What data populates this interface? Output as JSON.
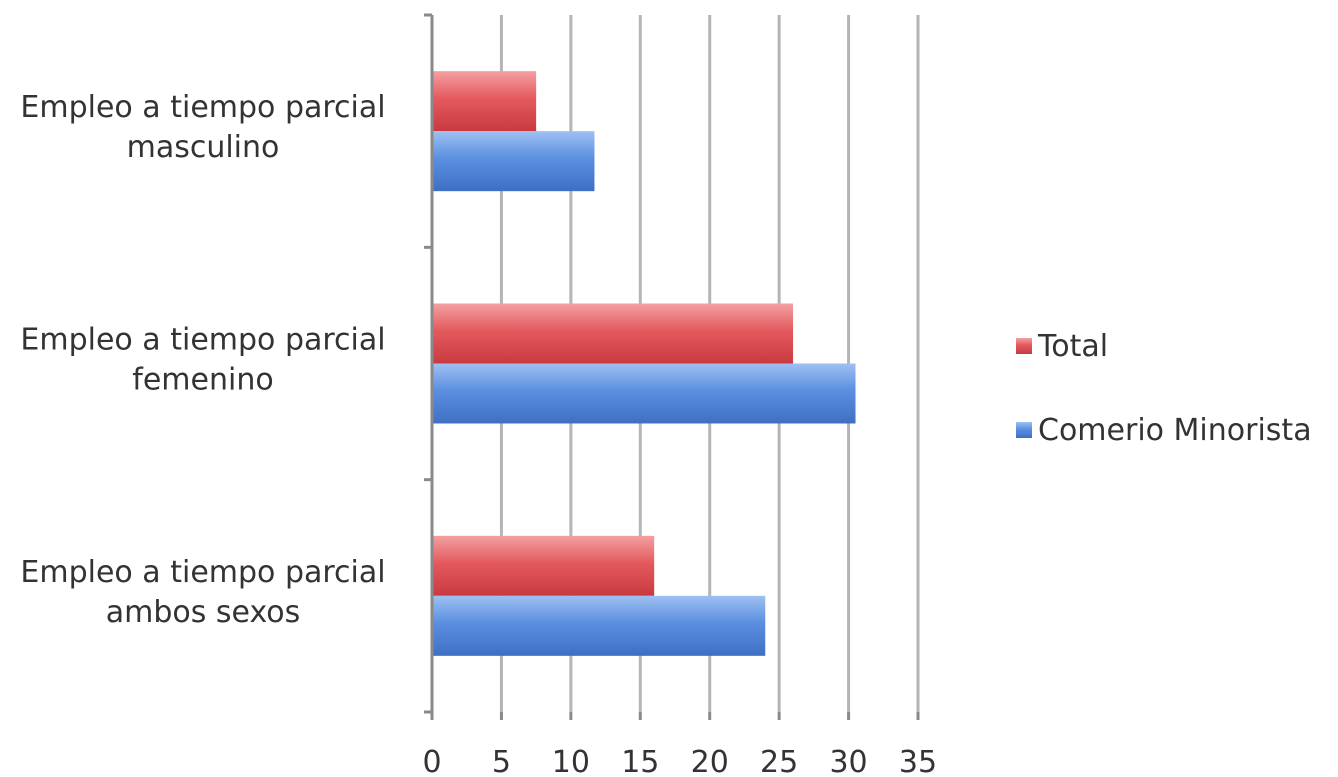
{
  "chart_data": {
    "type": "bar",
    "orientation": "horizontal",
    "categories": [
      [
        "Empleo a tiempo parcial",
        "masculino"
      ],
      [
        "Empleo a tiempo parcial",
        "femenino"
      ],
      [
        "Empleo a tiempo parcial",
        "ambos sexos"
      ]
    ],
    "series": [
      {
        "name": "Total",
        "color": "#e0474c",
        "values": [
          7.5,
          26.0,
          16.0
        ]
      },
      {
        "name": "Comerio Minorista",
        "color": "#4a7fd6",
        "values": [
          11.7,
          30.5,
          24.0
        ]
      }
    ],
    "xlim": [
      0,
      35
    ],
    "xticks": [
      0,
      5,
      10,
      15,
      20,
      25,
      30,
      35
    ],
    "grid": true,
    "legend_position": "right",
    "title": "",
    "xlabel": "",
    "ylabel": ""
  }
}
